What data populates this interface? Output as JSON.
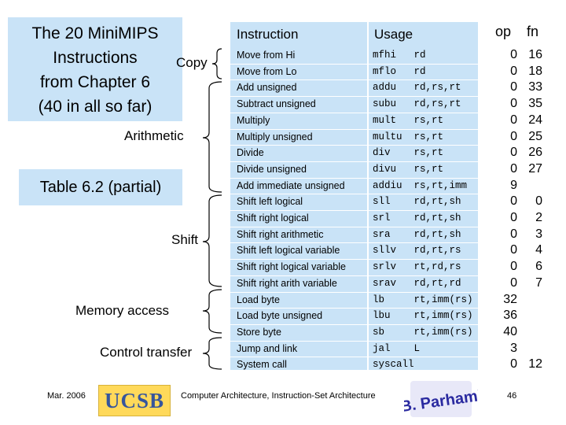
{
  "slide": {
    "title_lines": [
      "The 20 MiniMIPS",
      "Instructions",
      "from Chapter 6",
      "(40 in all so far)"
    ],
    "copy_label": "Copy",
    "table_label": "Table 6.2 (partial)",
    "categories": {
      "arithmetic": "Arithmetic",
      "shift": "Shift",
      "memory": "Memory access",
      "control": "Control transfer"
    }
  },
  "table": {
    "header_instruction": "Instruction",
    "header_usage": "Usage",
    "header_op": "op",
    "header_fn": "fn",
    "rows": [
      {
        "instruction": "Move from Hi",
        "usage": "mfhi   rd",
        "op": "0",
        "fn": "16"
      },
      {
        "instruction": "Move from Lo",
        "usage": "mflo   rd",
        "op": "0",
        "fn": "18"
      },
      {
        "instruction": "Add unsigned",
        "usage": "addu   rd,rs,rt",
        "op": "0",
        "fn": "33"
      },
      {
        "instruction": "Subtract unsigned",
        "usage": "subu   rd,rs,rt",
        "op": "0",
        "fn": "35"
      },
      {
        "instruction": "Multiply",
        "usage": "mult   rs,rt",
        "op": "0",
        "fn": "24"
      },
      {
        "instruction": "Multiply unsigned",
        "usage": "multu  rs,rt",
        "op": "0",
        "fn": "25"
      },
      {
        "instruction": "Divide",
        "usage": "div    rs,rt",
        "op": "0",
        "fn": "26"
      },
      {
        "instruction": "Divide unsigned",
        "usage": "divu   rs,rt",
        "op": "0",
        "fn": "27"
      },
      {
        "instruction": "Add immediate unsigned",
        "usage": "addiu  rs,rt,imm",
        "op": "9",
        "fn": ""
      },
      {
        "instruction": "Shift left logical",
        "usage": "sll    rd,rt,sh",
        "op": "0",
        "fn": "0"
      },
      {
        "instruction": "Shift right logical",
        "usage": "srl    rd,rt,sh",
        "op": "0",
        "fn": "2"
      },
      {
        "instruction": "Shift right arithmetic",
        "usage": "sra    rd,rt,sh",
        "op": "0",
        "fn": "3"
      },
      {
        "instruction": "Shift left logical variable",
        "usage": "sllv   rd,rt,rs",
        "op": "0",
        "fn": "4"
      },
      {
        "instruction": "Shift right logical variable",
        "usage": "srlv   rt,rd,rs",
        "op": "0",
        "fn": "6"
      },
      {
        "instruction": "Shift right arith variable",
        "usage": "srav   rd,rt,rd",
        "op": "0",
        "fn": "7"
      },
      {
        "instruction": "Load byte",
        "usage": "lb     rt,imm(rs)",
        "op": "32",
        "fn": ""
      },
      {
        "instruction": "Load byte unsigned",
        "usage": "lbu    rt,imm(rs)",
        "op": "36",
        "fn": ""
      },
      {
        "instruction": "Store byte",
        "usage": "sb     rt,imm(rs)",
        "op": "40",
        "fn": ""
      },
      {
        "instruction": "Jump and link",
        "usage": "jal    L",
        "op": "3",
        "fn": ""
      },
      {
        "instruction": "System call",
        "usage": "syscall",
        "op": "0",
        "fn": "12"
      }
    ]
  },
  "footer": {
    "date": "Mar. 2006",
    "logo_text": "UCSB",
    "center_text": "Computer Architecture, Instruction-Set Architecture",
    "author_logo_text": "B. Parhami",
    "page_number": "46"
  }
}
